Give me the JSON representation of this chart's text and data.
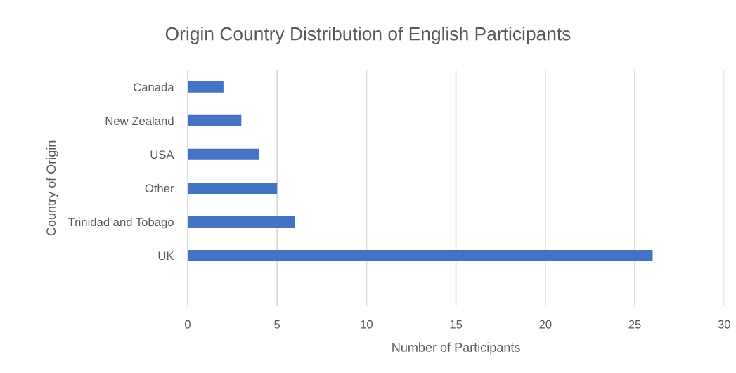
{
  "chart_data": {
    "type": "bar",
    "orientation": "horizontal",
    "title": "Origin Country Distribution of English Participants",
    "xlabel": "Number of Participants",
    "ylabel": "Country of Origin",
    "categories": [
      "Canada",
      "New Zealand",
      "USA",
      "Other",
      "Trinidad and Tobago",
      "UK",
      null
    ],
    "values": [
      2,
      3,
      4,
      5,
      6,
      26,
      null
    ],
    "color": "#4472c4",
    "xlim": [
      0,
      30
    ],
    "xticks": [
      0,
      5,
      10,
      15,
      20,
      25,
      30
    ],
    "grid": "x",
    "legend": false
  }
}
